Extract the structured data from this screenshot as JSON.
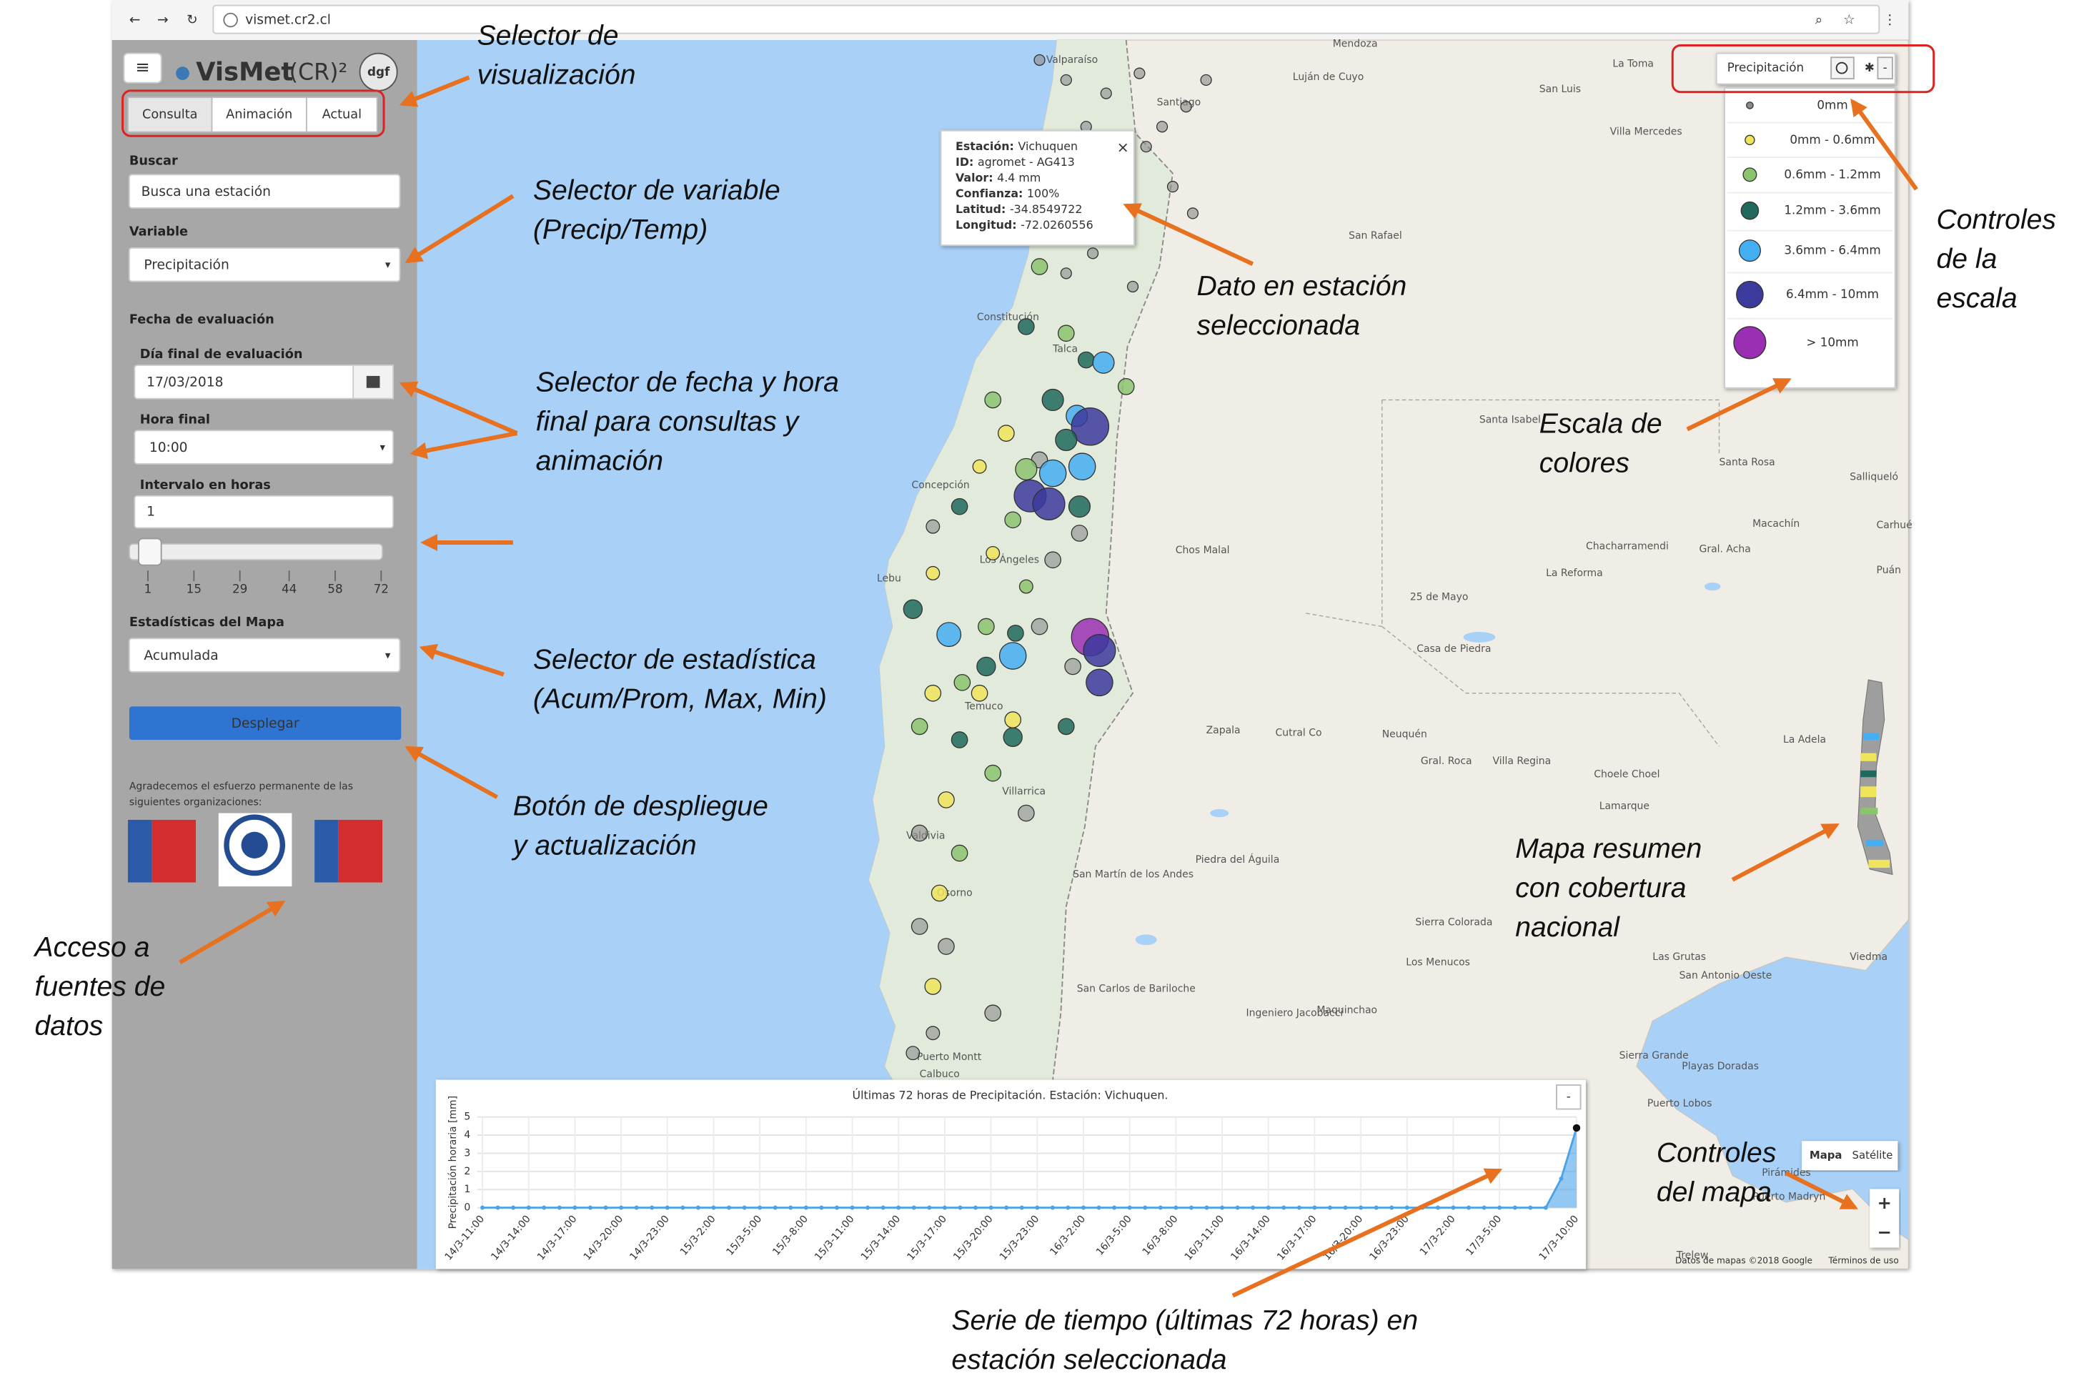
{
  "browser": {
    "url": "vismet.cr2.cl"
  },
  "sidebar": {
    "logo": {
      "name": "VisMet",
      "mark": "(CR)²",
      "badge": "dgf"
    },
    "tabs": [
      "Consulta",
      "Animación",
      "Actual"
    ],
    "search": {
      "label": "Buscar",
      "placeholder": "Busca una estación"
    },
    "variable": {
      "label": "Variable",
      "value": "Precipitación"
    },
    "date_section": "Fecha de evaluación",
    "end_day": {
      "label": "Día final de evaluación",
      "value": "17/03/2018"
    },
    "end_hour": {
      "label": "Hora final",
      "value": "10:00"
    },
    "interval": {
      "label": "Intervalo en horas",
      "value": "1"
    },
    "slider_ticks": [
      1,
      15,
      29,
      44,
      58,
      72
    ],
    "statistics": {
      "label": "Estadísticas del Mapa",
      "value": "Acumulada"
    },
    "button": "Desplegar",
    "thanks": [
      "Agradecemos el esfuerzo permanente de las",
      "siguientes organizaciones:"
    ]
  },
  "popup": [
    {
      "label": "Estación:",
      "value": "Vichuquen"
    },
    {
      "label": "ID:",
      "value": "agromet - AG413"
    },
    {
      "label": "Valor:",
      "value": "4.4 mm"
    },
    {
      "label": "Confianza:",
      "value": "100%"
    },
    {
      "label": "Latitud:",
      "value": "-34.8549722"
    },
    {
      "label": "Longitud:",
      "value": "-72.0260556"
    }
  ],
  "legend": {
    "title": "Precipitación",
    "collapse": "-",
    "items": [
      {
        "label": "0mm",
        "color": "#8a8a8a"
      },
      {
        "label": "0mm - 0.6mm",
        "color": "#efe45a"
      },
      {
        "label": "0.6mm - 1.2mm",
        "color": "#8cc36e"
      },
      {
        "label": "1.2mm - 3.6mm",
        "color": "#1f6a5c"
      },
      {
        "label": "3.6mm - 6.4mm",
        "color": "#44aef2"
      },
      {
        "label": "6.4mm - 10mm",
        "color": "#3c3a9c"
      },
      {
        "label": "> 10mm",
        "color": "#9a2fb4"
      }
    ]
  },
  "map": {
    "places": [
      "Valparaíso",
      "Santiago",
      "Mendoza",
      "Luján de Cuyo",
      "La Toma",
      "San Luis",
      "Villa Mercedes",
      "San Rafael",
      "Constitución",
      "Talca",
      "Concepción",
      "Los Ángeles",
      "Lebu",
      "Temuco",
      "Villarrica",
      "Valdivia",
      "Osorno",
      "Puerto Montt",
      "Calbuco",
      "Chos Malal",
      "Zapala",
      "Cutral Co",
      "Neuquén",
      "Piedra del Águila",
      "San Martín de los Andes",
      "San Carlos de Bariloche",
      "Santa Isabel",
      "Santa Rosa",
      "Macachín",
      "Chacharramendi",
      "La Reforma",
      "25 de Mayo",
      "Gral. Acha",
      "Casa de Piedra",
      "Gral. Roca",
      "Villa Regina",
      "Choele Choel",
      "Lamarque",
      "La Adela",
      "Sierra Colorada",
      "Los Menucos",
      "Ingeniero Jacobacci",
      "Maquinchao",
      "Las Grutas",
      "San Antonio Oeste",
      "Sierra Grande",
      "Playas Doradas",
      "Puerto Lobos",
      "Viedma",
      "Trelew",
      "Pirámides",
      "Puerto Madryn",
      "Salliqueló",
      "Puán",
      "Carhué"
    ],
    "buttons": [
      "Mapa",
      "Satélite"
    ],
    "zoom": [
      "+",
      "−"
    ],
    "attribution": [
      "Datos de mapas ©2018 Google",
      "Términos de uso"
    ]
  },
  "chart_data": {
    "type": "line",
    "title": "Últimas 72 horas de Precipitación. Estación: Vichuquen.",
    "y_label": "Precipitación horaria [mm]",
    "categories": [
      "14/3-11:00",
      null,
      null,
      "14/3-14:00",
      null,
      null,
      "14/3-17:00",
      null,
      null,
      "14/3-20:00",
      null,
      null,
      "14/3-23:00",
      null,
      null,
      "15/3-2:00",
      null,
      null,
      "15/3-5:00",
      null,
      null,
      "15/3-8:00",
      null,
      null,
      "15/3-11:00",
      null,
      null,
      "15/3-14:00",
      null,
      null,
      "15/3-17:00",
      null,
      null,
      "15/3-20:00",
      null,
      null,
      "15/3-23:00",
      null,
      null,
      "16/3-2:00",
      null,
      null,
      "16/3-5:00",
      null,
      null,
      "16/3-8:00",
      null,
      null,
      "16/3-11:00",
      null,
      null,
      "16/3-14:00",
      null,
      null,
      "16/3-17:00",
      null,
      null,
      "16/3-20:00",
      null,
      null,
      "16/3-23:00",
      null,
      null,
      "17/3-2:00",
      null,
      null,
      "17/3-5:00",
      null,
      null,
      null,
      null,
      "17/3-10:00"
    ],
    "values": [
      0,
      0,
      0,
      0,
      0,
      0,
      0,
      0,
      0,
      0,
      0,
      0,
      0,
      0,
      0,
      0,
      0,
      0,
      0,
      0,
      0,
      0,
      0,
      0,
      0,
      0,
      0,
      0,
      0,
      0,
      0,
      0,
      0,
      0,
      0,
      0,
      0,
      0,
      0,
      0,
      0,
      0,
      0,
      0,
      0,
      0,
      0,
      0,
      0,
      0,
      0,
      0,
      0,
      0,
      0,
      0,
      0,
      0,
      0,
      0,
      0,
      0,
      0,
      0,
      0,
      0,
      0,
      0,
      0,
      0,
      1.6,
      4.4
    ],
    "color": "#4aa3e8",
    "ylim": [
      0,
      5
    ],
    "yticks": [
      0,
      1,
      2,
      3,
      4,
      5
    ],
    "grid": true
  },
  "annotations": [
    {
      "lines": [
        "Selector de",
        "visualización"
      ]
    },
    {
      "lines": [
        "Selector de variable",
        "(Precip/Temp)"
      ]
    },
    {
      "lines": [
        "Dato en estación",
        "seleccionada"
      ]
    },
    {
      "lines": [
        "Controles",
        "de la",
        "escala"
      ]
    },
    {
      "lines": [
        "Selector de fecha y hora",
        "final para consultas y",
        "animación"
      ]
    },
    {
      "lines": [
        "Escala de",
        "colores"
      ]
    },
    {
      "lines": [
        "Selector de estadística",
        "(Acum/Prom, Max, Min)"
      ]
    },
    {
      "lines": [
        "Botón de despliegue",
        "y actualización"
      ]
    },
    {
      "lines": [
        "Mapa resumen",
        "con cobertura",
        "nacional"
      ]
    },
    {
      "lines": [
        "Acceso a",
        "fuentes de",
        "datos"
      ]
    },
    {
      "lines": [
        "Controles",
        "del mapa"
      ]
    },
    {
      "lines": [
        "Serie de tiempo (últimas 72 horas) en",
        "estación seleccionada"
      ]
    }
  ]
}
